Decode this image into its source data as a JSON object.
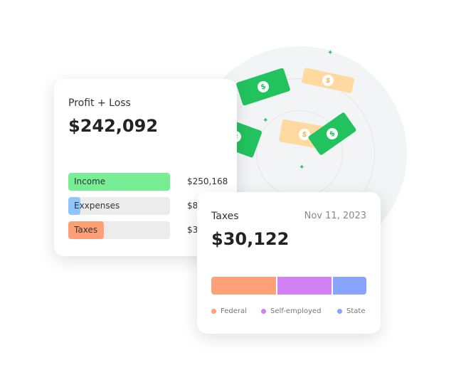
{
  "profit_card": {
    "title": "Profit + Loss",
    "total": "$242,092",
    "rows": [
      {
        "label": "Income",
        "amount": "$250,168",
        "fill_percent": 100,
        "color": "#77ee94"
      },
      {
        "label": "Exxpenses",
        "amount": "$8",
        "fill_percent": 12,
        "color": "#8ec5ff"
      },
      {
        "label": "Taxes",
        "amount": "$3",
        "fill_percent": 35,
        "color": "#ff9f76"
      }
    ]
  },
  "taxes_card": {
    "title": "Taxes",
    "date": "Nov 11, 2023",
    "total": "$30,122",
    "segments": [
      {
        "label": "Federal",
        "color": "#ffa076",
        "share": 0.42
      },
      {
        "label": "Self-employed",
        "color": "#d281f5",
        "share": 0.36
      },
      {
        "label": "State",
        "color": "#88a4ff",
        "share": 0.22
      }
    ]
  },
  "bill_symbol": "$"
}
